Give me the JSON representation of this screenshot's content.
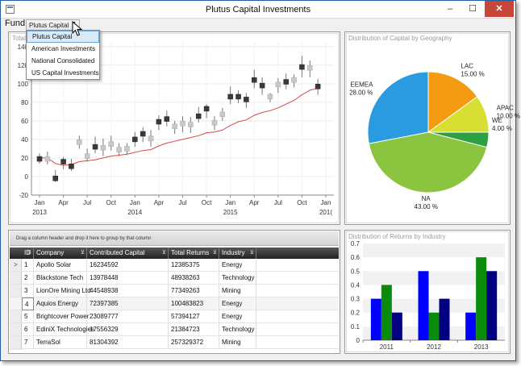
{
  "window": {
    "title": "Plutus Capital Investments",
    "minimize": "–",
    "maximize": "☐",
    "close": "✕"
  },
  "fund": {
    "label": "Fund",
    "selected": "Plutus Capital",
    "options": [
      "Plutus Capital",
      "American Investments",
      "National Consolidated",
      "US Capital Investments"
    ]
  },
  "colors": {
    "candle_dark": "#3a3a3a",
    "candle_light": "#c8c8c8",
    "trend": "#d8484b",
    "pie_lac": "#f39c12",
    "pie_emea": "#2a9be0",
    "pie_apac": "#d7df33",
    "pie_we": "#2ea043",
    "pie_na": "#8bc43f",
    "bar_blue": "#0000ff",
    "bar_green": "#0a8c0a",
    "bar_navy": "#000080"
  },
  "stock_chart": {
    "title": "Total",
    "ylim": [
      -20,
      145
    ],
    "yticks": [
      "140",
      "120",
      "100",
      "80",
      "60",
      "40",
      "20",
      "0",
      "-20"
    ],
    "ytick_values": [
      140,
      120,
      100,
      80,
      60,
      40,
      20,
      0,
      -20
    ],
    "month_labels": [
      "Jan",
      "Apr",
      "Jul",
      "Oct",
      "Jan",
      "Apr",
      "Jul",
      "Oct",
      "Jan",
      "Apr",
      "Jul",
      "Oct",
      "Jan"
    ],
    "year_labels": [
      "2013",
      "2014",
      "2015",
      "201("
    ]
  },
  "chart_data": [
    {
      "type": "candlestick",
      "title": "Total",
      "ylim": [
        -20,
        145
      ],
      "x_months": [
        0,
        1,
        2,
        3,
        4,
        5,
        6,
        7,
        8,
        9,
        10,
        11,
        12,
        13,
        14,
        15,
        16,
        17,
        18,
        19,
        20,
        21,
        22,
        23,
        24,
        25,
        26,
        27,
        28,
        29,
        30,
        31,
        32,
        33,
        34,
        35
      ],
      "close": [
        19,
        19,
        -2,
        16,
        11,
        37,
        22,
        32,
        31,
        35,
        29,
        30,
        40,
        46,
        41,
        59,
        62,
        54,
        57,
        56,
        65,
        73,
        58,
        67,
        86,
        86,
        83,
        104,
        98,
        86,
        99,
        102,
        104,
        118,
        117,
        97
      ],
      "high": [
        25,
        27,
        7,
        21,
        19,
        44,
        30,
        43,
        41,
        44,
        36,
        36,
        48,
        53,
        50,
        66,
        71,
        60,
        65,
        64,
        75,
        78,
        65,
        74,
        97,
        93,
        90,
        115,
        107,
        90,
        106,
        111,
        110,
        130,
        125,
        105
      ],
      "low": [
        14,
        13,
        -6,
        8,
        6,
        30,
        16,
        25,
        22,
        28,
        22,
        23,
        32,
        37,
        32,
        50,
        54,
        46,
        48,
        47,
        58,
        63,
        50,
        60,
        78,
        79,
        74,
        95,
        88,
        80,
        90,
        94,
        96,
        107,
        107,
        88
      ],
      "up": [
        false,
        true,
        false,
        false,
        false,
        true,
        true,
        false,
        true,
        true,
        true,
        true,
        false,
        false,
        true,
        false,
        false,
        true,
        true,
        true,
        false,
        false,
        true,
        true,
        false,
        false,
        false,
        false,
        false,
        true,
        true,
        false,
        true,
        false,
        true,
        false
      ],
      "trend": [
        20,
        20,
        14,
        12,
        13,
        16,
        17,
        18,
        20,
        22,
        23,
        24,
        26,
        28,
        29,
        33,
        36,
        38,
        40,
        42,
        44,
        47,
        48,
        50,
        55,
        59,
        61,
        66,
        69,
        71,
        74,
        78,
        82,
        88,
        93,
        95
      ]
    },
    {
      "type": "pie",
      "title": "Distribution of Capital by Geography",
      "slices": [
        {
          "label": "LAC",
          "percent": "15.00 %",
          "value": 15
        },
        {
          "label": "APAC",
          "percent": "10.00 %",
          "value": 10
        },
        {
          "label": "WE",
          "percent": "4.00 %",
          "value": 4
        },
        {
          "label": "NA",
          "percent": "43.00 %",
          "value": 43
        },
        {
          "label": "EEMEA",
          "percent": "28.00 %",
          "value": 28
        }
      ]
    },
    {
      "type": "bar",
      "title": "Distribution of Returns by Industry",
      "categories": [
        "2011",
        "2012",
        "2013"
      ],
      "series": [
        {
          "values": [
            0.3,
            0.5,
            0.2
          ]
        },
        {
          "values": [
            0.4,
            0.2,
            0.6
          ]
        },
        {
          "values": [
            0.2,
            0.3,
            0.5
          ]
        }
      ],
      "ylim": [
        0,
        0.7
      ],
      "yticks": [
        "0.7",
        "0.6",
        "0.5",
        "0.4",
        "0.3",
        "0.2",
        "0.1",
        "0"
      ],
      "ytick_values": [
        0.7,
        0.6,
        0.5,
        0.4,
        0.3,
        0.2,
        0.1,
        0
      ]
    }
  ],
  "grid": {
    "group_hint": "Drag a column header and drop it here to group by that column",
    "columns": [
      "ID",
      "Company",
      "Contributed Capital",
      "Total Returns",
      "Industry"
    ],
    "rows": [
      [
        "1",
        "Apollo Solar",
        "16234592",
        "12385375",
        "Energy"
      ],
      [
        "2",
        "Blackstone Tech",
        "13978448",
        "48938263",
        "Technology"
      ],
      [
        "3",
        "LionOre Mining Ltd",
        "44548938",
        "77349263",
        "Mining"
      ],
      [
        "4",
        "Aquios Energy",
        "72397385",
        "100483823",
        "Energy"
      ],
      [
        "5",
        "Brightcover Power",
        "23089777",
        "57394127",
        "Energy"
      ],
      [
        "6",
        "EdiniX Technologies",
        "17556329",
        "21384723",
        "Technology"
      ],
      [
        "7",
        "TerraSol",
        "81304392",
        "257329372",
        "Mining"
      ]
    ],
    "current_row_marker": ">"
  }
}
